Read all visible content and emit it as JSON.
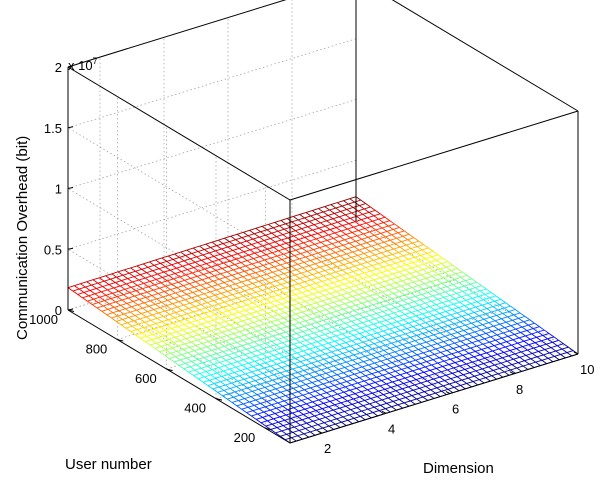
{
  "chart_data": {
    "type": "surface",
    "title": "",
    "xlabel": "Dimension",
    "ylabel": "User number",
    "zlabel": "Communication Overhead (bit)",
    "z_multiplier_label": "x 10",
    "z_multiplier_exponent": "7",
    "x_ticks": [
      "2",
      "4",
      "6",
      "8",
      "10"
    ],
    "y_ticks": [
      "200",
      "400",
      "600",
      "800",
      "1000"
    ],
    "z_ticks": [
      "0",
      "0.5",
      "1",
      "1.5",
      "2"
    ],
    "xlim": [
      1,
      10
    ],
    "ylim": [
      100,
      1000
    ],
    "zlim": [
      0,
      20000000
    ],
    "surface": {
      "description_values": {
        "z_at_min_user_min_dim": 0,
        "z_at_max_user_max_dim": 2000000
      }
    },
    "colormap": "jet",
    "grid": true
  }
}
